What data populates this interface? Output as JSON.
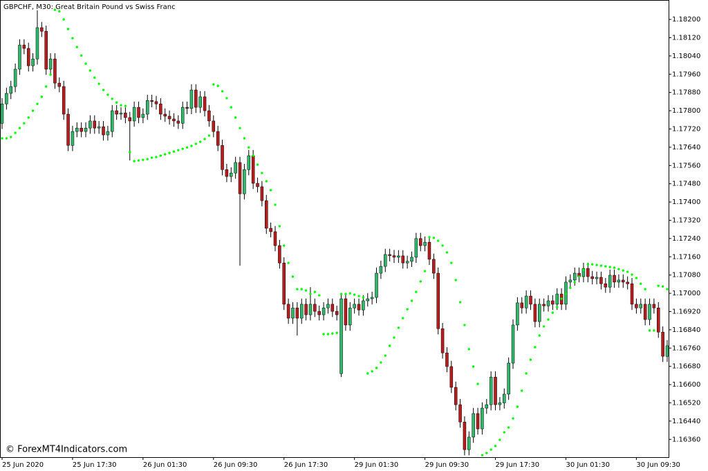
{
  "chart_data": {
    "type": "candlestick",
    "title": "GBPCHF, M30:  Great Britain Pound vs Swiss Franc",
    "watermark": "© ForexMT4Indicators.com",
    "up_color": "#2fb86a",
    "down_color": "#b81c1c",
    "sar_color": "#00ff00",
    "categories": [
      "25 Jun 2020",
      null,
      null,
      null,
      null,
      null,
      null,
      null,
      null,
      null,
      null,
      null,
      null,
      null,
      null,
      null,
      "25 Jun 17:30",
      null,
      null,
      null,
      null,
      null,
      null,
      null,
      null,
      null,
      null,
      null,
      null,
      null,
      null,
      null,
      "26 Jun 01:30",
      null,
      null,
      null,
      null,
      null,
      null,
      null,
      null,
      null,
      null,
      null,
      null,
      null,
      null,
      null,
      "26 Jun 09:30",
      null,
      null,
      null,
      null,
      null,
      null,
      null,
      null,
      null,
      null,
      null,
      null,
      null,
      null,
      null,
      "26 Jun 17:30",
      null,
      null,
      null,
      null,
      null,
      null,
      null,
      null,
      null,
      null,
      null,
      null,
      null,
      null,
      null,
      "29 Jun 01:30",
      null,
      null,
      null,
      null,
      null,
      null,
      null,
      null,
      null,
      null,
      null,
      null,
      null,
      null,
      null,
      "29 Jun 09:30",
      null,
      null,
      null,
      null,
      null,
      null,
      null,
      null,
      null,
      null,
      null,
      null,
      null,
      null,
      null,
      "29 Jun 17:30",
      null,
      null,
      null,
      null,
      null,
      null,
      null,
      null,
      null,
      null,
      null,
      null,
      null,
      null,
      null,
      "30 Jun 01:30",
      null,
      null,
      null,
      null,
      null,
      null,
      null,
      null,
      null,
      null,
      null,
      null,
      null,
      null,
      null,
      "30 Jun 09:30",
      null,
      null,
      null,
      null,
      null,
      null,
      null
    ],
    "open": [
      1.17745,
      1.1783,
      1.17876,
      1.17906,
      1.17982,
      1.18088,
      1.18073,
      1.17997,
      1.18027,
      1.18164,
      1.18148,
      1.17982,
      1.18027,
      1.17921,
      1.17906,
      1.17785,
      1.17648,
      1.17709,
      1.17724,
      1.17709,
      1.17724,
      1.17755,
      1.17724,
      1.1773,
      1.17694,
      1.17709,
      1.178,
      1.17785,
      1.1779,
      1.1777,
      1.17755,
      1.17815,
      1.1777,
      1.17785,
      1.17845,
      1.1784,
      1.1783,
      1.17785,
      1.17776,
      1.17764,
      1.17755,
      1.17745,
      1.17815,
      1.1781,
      1.17891,
      1.17815,
      1.17861,
      1.178,
      1.17755,
      1.17709,
      1.17648,
      1.17542,
      1.17512,
      1.17527,
      1.17573,
      1.17436,
      1.17542,
      1.17603,
      1.17482,
      1.17467,
      1.17406,
      1.17285,
      1.1727,
      1.17209,
      1.17133,
      1.16952,
      1.16891,
      1.16936,
      1.16891,
      1.16952,
      1.16906,
      1.16952,
      1.16921,
      1.16906,
      1.16936,
      1.16952,
      1.16921,
      1.16648,
      1.16976,
      1.16861,
      1.16936,
      1.16952,
      1.16927,
      1.16967,
      1.16976,
      1.16982,
      1.17088,
      1.17118,
      1.1717,
      1.17165,
      1.17158,
      1.17164,
      1.17133,
      1.1714,
      1.17158,
      1.1724,
      1.17209,
      1.17224,
      1.17149,
      1.17088,
      1.16845,
      1.16739,
      1.16679,
      1.16588,
      1.16512,
      1.16436,
      1.16315,
      1.1637,
      1.16473,
      1.16406,
      1.16497,
      1.16512,
      1.16633,
      1.16512,
      1.1652,
      1.16558,
      1.16694,
      1.16861,
      1.16958,
      1.16936,
      1.16988,
      1.16952,
      1.16876,
      1.16952,
      1.16945,
      1.16967,
      1.16952,
      1.16997,
      1.16952,
      1.17049,
      1.17058,
      1.17088,
      1.17073,
      1.17109,
      1.17073,
      1.17064,
      1.1707,
      1.17042,
      1.17027,
      1.17079,
      1.17049,
      1.17058,
      1.17049,
      1.17042,
      1.16952,
      1.16936,
      1.16952,
      1.16885,
      1.16952,
      1.16936,
      1.1683,
      1.16724
    ],
    "high": [
      1.17855,
      1.17901,
      1.17931,
      1.18007,
      1.18113,
      1.18113,
      1.18098,
      1.18052,
      1.1824,
      1.18189,
      1.18173,
      1.18052,
      1.18052,
      1.17946,
      1.17931,
      1.1781,
      1.17734,
      1.17749,
      1.17749,
      1.17749,
      1.1778,
      1.1778,
      1.17755,
      1.17755,
      1.17734,
      1.17825,
      1.17825,
      1.17815,
      1.17815,
      1.17795,
      1.1784,
      1.1784,
      1.1781,
      1.1787,
      1.1787,
      1.17865,
      1.17855,
      1.1781,
      1.17801,
      1.17789,
      1.1778,
      1.1784,
      1.1784,
      1.17916,
      1.17916,
      1.17886,
      1.17886,
      1.17825,
      1.1778,
      1.17734,
      1.17673,
      1.17567,
      1.17552,
      1.17598,
      1.17598,
      1.17567,
      1.17628,
      1.17628,
      1.17507,
      1.17492,
      1.17431,
      1.1731,
      1.17295,
      1.17234,
      1.17158,
      1.16977,
      1.16961,
      1.16961,
      1.16977,
      1.16977,
      1.17027,
      1.16977,
      1.16946,
      1.16961,
      1.16977,
      1.16977,
      1.16946,
      1.17001,
      1.17001,
      1.16961,
      1.16977,
      1.16977,
      1.16992,
      1.17001,
      1.17007,
      1.17113,
      1.17143,
      1.17195,
      1.17195,
      1.1719,
      1.17189,
      1.17189,
      1.17165,
      1.17183,
      1.17265,
      1.17265,
      1.17249,
      1.17249,
      1.17174,
      1.17113,
      1.1687,
      1.16764,
      1.16704,
      1.16613,
      1.16537,
      1.16461,
      1.16395,
      1.16498,
      1.16498,
      1.16522,
      1.16537,
      1.16658,
      1.16658,
      1.16545,
      1.16583,
      1.16719,
      1.16886,
      1.16983,
      1.16983,
      1.17013,
      1.17013,
      1.16977,
      1.16977,
      1.16977,
      1.16992,
      1.16992,
      1.17022,
      1.17022,
      1.17074,
      1.17083,
      1.17113,
      1.17113,
      1.17134,
      1.17134,
      1.17098,
      1.17095,
      1.17095,
      1.17067,
      1.17104,
      1.17104,
      1.17083,
      1.17083,
      1.17074,
      1.17067,
      1.16977,
      1.16977,
      1.16977,
      1.16977,
      1.16977,
      1.16961,
      1.16855,
      1.16795
    ],
    "low": [
      1.1772,
      1.17805,
      1.17851,
      1.17881,
      1.17957,
      1.18048,
      1.17972,
      1.17972,
      1.18002,
      1.18123,
      1.17957,
      1.17957,
      1.17896,
      1.17881,
      1.1776,
      1.17623,
      1.17623,
      1.17684,
      1.17684,
      1.17684,
      1.17699,
      1.17699,
      1.17699,
      1.17669,
      1.17669,
      1.17684,
      1.1776,
      1.1776,
      1.17745,
      1.17582,
      1.1773,
      1.17745,
      1.17745,
      1.1776,
      1.17815,
      1.17805,
      1.1776,
      1.17751,
      1.17739,
      1.1773,
      1.1772,
      1.1772,
      1.17785,
      1.17785,
      1.1779,
      1.1779,
      1.17775,
      1.1773,
      1.17684,
      1.17623,
      1.17517,
      1.17487,
      1.17487,
      1.17502,
      1.17121,
      1.17411,
      1.17517,
      1.17457,
      1.17442,
      1.17381,
      1.1726,
      1.17245,
      1.17184,
      1.17108,
      1.16927,
      1.16866,
      1.16866,
      1.16815,
      1.16866,
      1.16881,
      1.16881,
      1.16896,
      1.16881,
      1.16881,
      1.16911,
      1.16896,
      1.16881,
      1.16633,
      1.16836,
      1.16836,
      1.16911,
      1.16902,
      1.16902,
      1.16942,
      1.16951,
      1.16957,
      1.17063,
      1.17093,
      1.1714,
      1.17133,
      1.17133,
      1.17108,
      1.17108,
      1.17115,
      1.17133,
      1.17184,
      1.17184,
      1.17124,
      1.17063,
      1.1682,
      1.16714,
      1.16654,
      1.16563,
      1.16487,
      1.16411,
      1.1629,
      1.1629,
      1.16345,
      1.16381,
      1.16381,
      1.16472,
      1.16487,
      1.16487,
      1.16487,
      1.16495,
      1.16533,
      1.16669,
      1.16836,
      1.16911,
      1.16911,
      1.16927,
      1.16851,
      1.16851,
      1.1692,
      1.1692,
      1.16927,
      1.16927,
      1.16927,
      1.16927,
      1.17024,
      1.17033,
      1.17048,
      1.17048,
      1.17048,
      1.17039,
      1.17039,
      1.17017,
      1.17002,
      1.17002,
      1.17024,
      1.17024,
      1.17024,
      1.17017,
      1.16927,
      1.16911,
      1.16911,
      1.1686,
      1.1686,
      1.16911,
      1.16805,
      1.16699,
      1.16699
    ],
    "close": [
      1.1783,
      1.17876,
      1.17906,
      1.17982,
      1.18088,
      1.18073,
      1.17997,
      1.18027,
      1.18164,
      1.18148,
      1.17982,
      1.18027,
      1.17921,
      1.17906,
      1.17785,
      1.17648,
      1.17709,
      1.17724,
      1.17709,
      1.17724,
      1.17755,
      1.17724,
      1.1773,
      1.17694,
      1.17709,
      1.178,
      1.17785,
      1.1779,
      1.1777,
      1.17755,
      1.17815,
      1.1777,
      1.17785,
      1.17845,
      1.1784,
      1.1783,
      1.17785,
      1.17776,
      1.17764,
      1.17755,
      1.17745,
      1.17815,
      1.1781,
      1.17891,
      1.17815,
      1.17861,
      1.178,
      1.17755,
      1.17709,
      1.17648,
      1.17542,
      1.17512,
      1.17527,
      1.17573,
      1.17436,
      1.17542,
      1.17603,
      1.17482,
      1.17467,
      1.17406,
      1.17285,
      1.1727,
      1.17209,
      1.17133,
      1.16952,
      1.16891,
      1.16936,
      1.16891,
      1.16952,
      1.16906,
      1.16952,
      1.16921,
      1.16906,
      1.16936,
      1.16952,
      1.16921,
      1.16906,
      1.16976,
      1.16861,
      1.16936,
      1.16952,
      1.16927,
      1.16967,
      1.16976,
      1.16982,
      1.17088,
      1.17118,
      1.1717,
      1.17165,
      1.17158,
      1.17164,
      1.17133,
      1.1714,
      1.17158,
      1.1724,
      1.17209,
      1.17224,
      1.17149,
      1.17088,
      1.16845,
      1.16739,
      1.16679,
      1.16588,
      1.16512,
      1.16436,
      1.16315,
      1.1637,
      1.16473,
      1.16406,
      1.16497,
      1.16512,
      1.16633,
      1.16512,
      1.1652,
      1.16558,
      1.16694,
      1.16861,
      1.16958,
      1.16936,
      1.16988,
      1.16952,
      1.16876,
      1.16952,
      1.16945,
      1.16967,
      1.16952,
      1.16997,
      1.16952,
      1.17049,
      1.17058,
      1.17088,
      1.17073,
      1.17109,
      1.17073,
      1.17064,
      1.1707,
      1.17042,
      1.17027,
      1.17079,
      1.17049,
      1.17058,
      1.17049,
      1.17042,
      1.16952,
      1.16936,
      1.16952,
      1.16885,
      1.16952,
      1.16936,
      1.1683,
      1.16724,
      1.1677
    ],
    "sar": [
      1.17679,
      1.17679,
      1.17685,
      1.17703,
      1.17724,
      1.17745,
      1.1777,
      1.178,
      1.1783,
      1.17861,
      1.17906,
      1.17958,
      1.18242,
      1.18236,
      1.182,
      1.18158,
      1.18118,
      1.18079,
      1.18042,
      1.18006,
      1.17976,
      1.17945,
      1.17918,
      1.17891,
      1.1787,
      1.17852,
      1.17836,
      1.17824,
      1.17821,
      1.17618,
      1.17579,
      1.17582,
      1.17585,
      1.17588,
      1.17594,
      1.17597,
      1.17603,
      1.17609,
      1.17615,
      1.17621,
      1.17627,
      1.17633,
      1.17639,
      1.17646,
      1.17655,
      1.17664,
      1.17676,
      1.17691,
      1.17915,
      1.17909,
      1.17885,
      1.17855,
      1.17815,
      1.1777,
      1.17724,
      1.17679,
      1.17639,
      1.17603,
      1.17564,
      1.17527,
      1.17491,
      1.17452,
      1.17388,
      1.17294,
      1.17209,
      1.17133,
      1.17073,
      1.17018,
      1.17018,
      1.17012,
      1.16997,
      1.17006,
      1.16991,
      1.16821,
      1.16821,
      1.16824,
      1.16827,
      1.16997,
      1.16997,
      1.17,
      1.16994,
      1.16988,
      1.16982,
      1.16649,
      1.16658,
      1.16673,
      1.16697,
      1.16727,
      1.1677,
      1.16806,
      1.16849,
      1.16891,
      1.1693,
      1.16967,
      1.17006,
      1.17052,
      1.17097,
      1.17246,
      1.17243,
      1.1723,
      1.17209,
      1.17179,
      1.17133,
      1.17058,
      1.16961,
      1.16861,
      1.16755,
      1.16679,
      1.16603,
      1.16291,
      1.163,
      1.16315,
      1.16331,
      1.16358,
      1.16391,
      1.16412,
      1.16452,
      1.16503,
      1.16573,
      1.16649,
      1.16709,
      1.16764,
      1.16815,
      1.16855,
      1.16885,
      1.16915,
      1.1694,
      1.16976,
      1.16997,
      1.17024,
      1.17049,
      1.17073,
      1.17103,
      1.17127,
      1.17127,
      1.17124,
      1.17121,
      1.17118,
      1.17115,
      1.17112,
      1.17106,
      1.171,
      1.17094,
      1.17082,
      1.17067,
      1.17042,
      1.17018,
      1.16837,
      1.16837,
      1.17033,
      1.1703,
      1.17018
    ],
    "ylim": [
      1.16285,
      1.18273
    ],
    "yticks": [
      {
        "value": 1.182,
        "label": "1.18200"
      },
      {
        "value": 1.1812,
        "label": "1.18120"
      },
      {
        "value": 1.1804,
        "label": "1.18040"
      },
      {
        "value": 1.1796,
        "label": "1.17960"
      },
      {
        "value": 1.1788,
        "label": "1.17880"
      },
      {
        "value": 1.178,
        "label": "1.17800"
      },
      {
        "value": 1.1772,
        "label": "1.17720"
      },
      {
        "value": 1.1764,
        "label": "1.17640"
      },
      {
        "value": 1.1756,
        "label": "1.17560"
      },
      {
        "value": 1.1748,
        "label": "1.17480"
      },
      {
        "value": 1.174,
        "label": "1.17400"
      },
      {
        "value": 1.1732,
        "label": "1.17320"
      },
      {
        "value": 1.1724,
        "label": "1.17240"
      },
      {
        "value": 1.1716,
        "label": "1.17160"
      },
      {
        "value": 1.1708,
        "label": "1.17080"
      },
      {
        "value": 1.17,
        "label": "1.17000"
      },
      {
        "value": 1.1692,
        "label": "1.16920"
      },
      {
        "value": 1.1684,
        "label": "1.16840"
      },
      {
        "value": 1.1676,
        "label": "1.16760"
      },
      {
        "value": 1.1668,
        "label": "1.16680"
      },
      {
        "value": 1.166,
        "label": "1.16600"
      },
      {
        "value": 1.1652,
        "label": "1.16520"
      },
      {
        "value": 1.1644,
        "label": "1.16440"
      },
      {
        "value": 1.1636,
        "label": "1.16360"
      }
    ],
    "grid": false
  }
}
